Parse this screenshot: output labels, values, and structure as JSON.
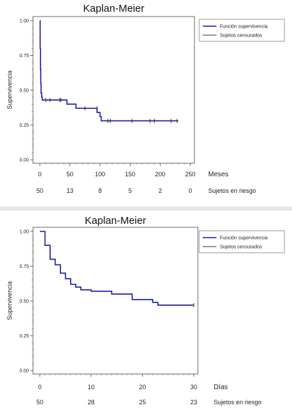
{
  "chart_data": [
    {
      "type": "line",
      "title": "Kaplan-Meier",
      "ylabel": "Supervivencia",
      "xlabel": "Meses",
      "xlim": [
        0,
        250
      ],
      "ylim": [
        0,
        1
      ],
      "yticks": [
        "0.00",
        "0.25",
        "0.50",
        "0.75",
        "1.00"
      ],
      "xticks": [
        "0",
        "50",
        "100",
        "150",
        "200",
        "250"
      ],
      "risk_label": "Sujetos en riesgo",
      "risk_values": [
        "50",
        "13",
        "8",
        "5",
        "2",
        "0"
      ],
      "legend": [
        "Función supervivencia",
        "Sujetos censurados"
      ],
      "legend_position": "top-right",
      "series": [
        {
          "name": "Función supervivencia",
          "color": "#1a1aa8",
          "x": [
            0,
            0.5,
            1,
            1.5,
            2,
            3,
            4,
            45,
            60,
            95,
            100,
            102,
            230
          ],
          "y": [
            1.0,
            0.8,
            0.65,
            0.55,
            0.48,
            0.45,
            0.43,
            0.4,
            0.37,
            0.34,
            0.31,
            0.28,
            0.28
          ]
        },
        {
          "name": "Sujetos censurados",
          "type": "censor",
          "color": "#222222",
          "x": [
            10,
            17,
            33,
            35,
            75,
            95,
            113,
            117,
            153,
            183,
            190,
            218,
            228
          ],
          "y": [
            0.43,
            0.43,
            0.43,
            0.43,
            0.37,
            0.37,
            0.28,
            0.28,
            0.28,
            0.28,
            0.28,
            0.28,
            0.28
          ]
        }
      ]
    },
    {
      "type": "line",
      "title": "Kaplan-Meier",
      "ylabel": "Supervivencia",
      "xlabel": "Días",
      "xlim": [
        0,
        30
      ],
      "ylim": [
        0,
        1
      ],
      "yticks": [
        "0.00",
        "0.25",
        "0.50",
        "0.75",
        "1.00"
      ],
      "xticks": [
        "0",
        "10",
        "20",
        "30"
      ],
      "risk_label": "Sujetos en riesgo",
      "risk_values": [
        "50",
        "28",
        "25",
        "23"
      ],
      "legend": [
        "Función supervivencia",
        "Sujetos censurados"
      ],
      "legend_position": "top-right",
      "series": [
        {
          "name": "Función supervivencia",
          "color": "#1a1aa8",
          "x": [
            0,
            1,
            2,
            3,
            4,
            5,
            6,
            7,
            8,
            10,
            14,
            18,
            22,
            23,
            30
          ],
          "y": [
            1.0,
            0.9,
            0.8,
            0.76,
            0.7,
            0.66,
            0.62,
            0.6,
            0.58,
            0.57,
            0.55,
            0.51,
            0.49,
            0.47,
            0.47
          ]
        },
        {
          "name": "Sujetos censurados",
          "type": "censor",
          "color": "#222222",
          "x": [
            30
          ],
          "y": [
            0.47
          ]
        }
      ]
    }
  ]
}
